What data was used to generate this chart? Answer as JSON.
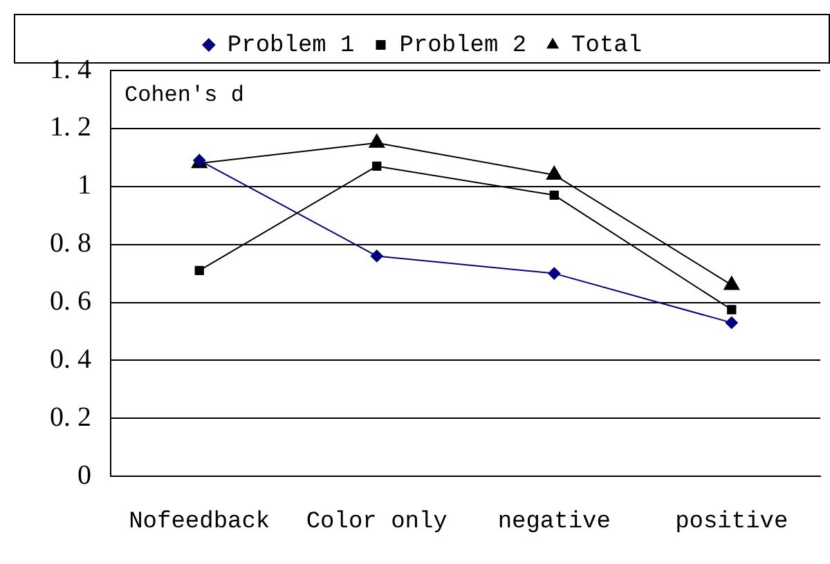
{
  "chart_data": {
    "type": "line",
    "ylabel": "Cohen's d",
    "categories": [
      "Nofeedback",
      "Color only",
      "negative",
      "positive"
    ],
    "series": [
      {
        "name": "Problem 1",
        "color": "#000080",
        "marker": "diamond",
        "values": [
          1.09,
          0.76,
          0.7,
          0.53
        ]
      },
      {
        "name": "Problem 2",
        "color": "#000000",
        "marker": "square",
        "values": [
          0.71,
          1.07,
          0.97,
          0.575
        ]
      },
      {
        "name": "Total",
        "color": "#000000",
        "marker": "triangle",
        "values": [
          1.08,
          1.15,
          1.04,
          0.66
        ]
      }
    ],
    "ylim": [
      0,
      1.4
    ],
    "yticks": [
      0,
      {
        "value": 0.2,
        "label": "0. 2"
      },
      {
        "value": 0.4,
        "label": "0. 4"
      },
      {
        "value": 0.6,
        "label": "0. 6"
      },
      {
        "value": 0.8,
        "label": "0. 8"
      },
      1,
      {
        "value": 1.2,
        "label": "1. 2"
      },
      {
        "value": 1.4,
        "label": "1. 4"
      }
    ],
    "grid": "y",
    "legend": "top",
    "line_style": "solid"
  }
}
